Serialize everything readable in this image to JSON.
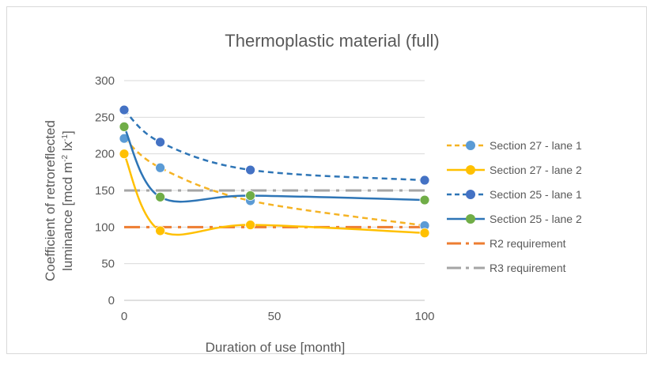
{
  "chart_data": {
    "type": "line",
    "title": "Thermoplastic material (full)",
    "xlabel": "Duration of use [month]",
    "ylabel_line1": "Coefficient of retroreflected",
    "ylabel_line2_prefix": "luminance [mcd m",
    "ylabel_sup1": "-2",
    "ylabel_mid": " lx",
    "ylabel_sup2": "-1",
    "ylabel_suffix": "]",
    "xlim": [
      0,
      100
    ],
    "ylim": [
      0,
      300
    ],
    "xticks": [
      0,
      50,
      100
    ],
    "yticks": [
      0,
      50,
      100,
      150,
      200,
      250,
      300
    ],
    "grid": "horizontal",
    "legend_position": "right",
    "series": [
      {
        "name": "Section  27 - lane 1",
        "color": "#f5b324",
        "marker_color": "#5b9bd5",
        "dash": "dashed",
        "smooth": true,
        "x": [
          0,
          12,
          42,
          100
        ],
        "y": [
          221,
          181,
          136,
          102
        ]
      },
      {
        "name": "Section  27 - lane 2",
        "color": "#ffc000",
        "marker_color": "#ffc000",
        "dash": "solid",
        "smooth": true,
        "x": [
          0,
          12,
          42,
          100
        ],
        "y": [
          200,
          95,
          103,
          92
        ]
      },
      {
        "name": "Section 25 - lane 1",
        "color": "#2e75b6",
        "marker_color": "#4472c4",
        "dash": "dashed",
        "smooth": true,
        "x": [
          0,
          12,
          42,
          100
        ],
        "y": [
          260,
          216,
          178,
          164
        ]
      },
      {
        "name": "Section 25 - lane 2",
        "color": "#2e75b6",
        "marker_color": "#70ad47",
        "dash": "solid",
        "smooth": true,
        "x": [
          0,
          12,
          42,
          100
        ],
        "y": [
          237,
          141,
          143,
          137
        ]
      },
      {
        "name": "R2 requirement",
        "color": "#ed7d31",
        "dash": "dashdot",
        "smooth": false,
        "x": [
          0,
          100
        ],
        "y": [
          100,
          100
        ]
      },
      {
        "name": "R3 requirement",
        "color": "#a5a5a5",
        "dash": "dashdot",
        "smooth": false,
        "x": [
          0,
          100
        ],
        "y": [
          150,
          150
        ]
      }
    ]
  }
}
